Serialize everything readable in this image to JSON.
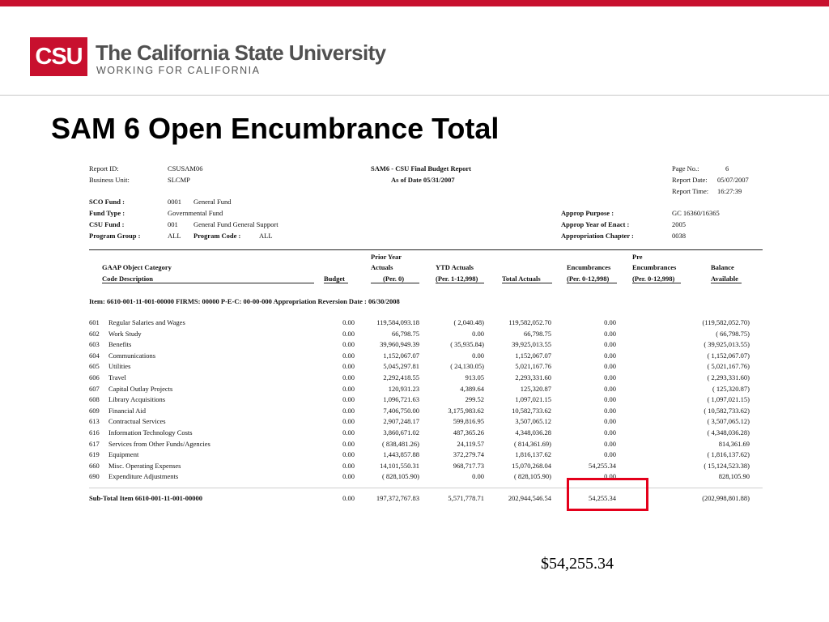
{
  "branding": {
    "logo_mark": "CSU",
    "name": "The California State University",
    "tagline": "WORKING FOR CALIFORNIA",
    "brand_color": "#c8102e"
  },
  "slide": {
    "title": "SAM 6 Open Encumbrance Total",
    "callout": "$54,255.34",
    "highlight_color": "#e4001b"
  },
  "report": {
    "id_label": "Report ID:",
    "id_value": "CSUSAM06",
    "bu_label": "Business Unit:",
    "bu_value": "SLCMP",
    "title": "SAM6 - CSU Final Budget Report",
    "as_of": "As of Date 05/31/2007",
    "page_label": "Page No.:",
    "page_value": "6",
    "date_label": "Report Date:",
    "date_value": "05/07/2007",
    "time_label": "Report Time:",
    "time_value": "16:27:39",
    "sco_label": "SCO Fund :",
    "sco_code": "0001",
    "sco_desc": "General Fund",
    "ftype_label": "Fund Type :",
    "ftype_value": "Governmental Fund",
    "csu_label": "CSU Fund :",
    "csu_code": "001",
    "csu_desc": "General Fund General Support",
    "pg_label": "Program Group :",
    "pg_value": "ALL",
    "pc_label": "Program Code :",
    "pc_value": "ALL",
    "purpose_label": "Approp Purpose :",
    "purpose_value": "GC 16360/16365",
    "year_label": "Approp Year of Enact :",
    "year_value": "2005",
    "chapter_label": "Appropriation Chapter :",
    "chapter_value": "0038",
    "headers": {
      "gaap": "GAAP Object Category",
      "code_desc": "Code Description",
      "budget": "Budget",
      "prior_year": "Prior Year",
      "actuals": "Actuals",
      "per0": "(Per. 0)",
      "ytd": "YTD Actuals",
      "per1_12": "(Per. 1-12,998)",
      "total": "Total Actuals",
      "enc": "Encumbrances",
      "per0_12": "(Per. 0-12,998)",
      "pre": "Pre",
      "pre_enc": "Encumbrances",
      "pre_per": "(Per. 0-12,998)",
      "balance": "Balance",
      "available": "Available"
    },
    "item_line": "Item: 6610-001-11-001-00000      FIRMS:  00000      P-E-C: 00-00-000   Appropriation Reversion Date : 06/30/2008",
    "rows": [
      {
        "code": "601",
        "desc": "Regular Salaries and Wages",
        "budget": "0.00",
        "prior": "119,584,093.18",
        "ytd": "(        2,040.48)",
        "total": "119,582,052.70",
        "enc": "0.00",
        "pre": "",
        "balance": "(119,582,052.70)"
      },
      {
        "code": "602",
        "desc": "Work Study",
        "budget": "0.00",
        "prior": "66,798.75",
        "ytd": "0.00",
        "total": "66,798.75",
        "enc": "0.00",
        "pre": "",
        "balance": "(        66,798.75)"
      },
      {
        "code": "603",
        "desc": "Benefits",
        "budget": "0.00",
        "prior": "39,960,949.39",
        "ytd": "(      35,935.84)",
        "total": "39,925,013.55",
        "enc": "0.00",
        "pre": "",
        "balance": "(  39,925,013.55)"
      },
      {
        "code": "604",
        "desc": "Communications",
        "budget": "0.00",
        "prior": "1,152,067.07",
        "ytd": "0.00",
        "total": "1,152,067.07",
        "enc": "0.00",
        "pre": "",
        "balance": "(    1,152,067.07)"
      },
      {
        "code": "605",
        "desc": "Utilities",
        "budget": "0.00",
        "prior": "5,045,297.81",
        "ytd": "(      24,130.05)",
        "total": "5,021,167.76",
        "enc": "0.00",
        "pre": "",
        "balance": "(    5,021,167.76)"
      },
      {
        "code": "606",
        "desc": "Travel",
        "budget": "0.00",
        "prior": "2,292,418.55",
        "ytd": "913.05",
        "total": "2,293,331.60",
        "enc": "0.00",
        "pre": "",
        "balance": "(    2,293,331.60)"
      },
      {
        "code": "607",
        "desc": "Capital Outlay Projects",
        "budget": "0.00",
        "prior": "120,931.23",
        "ytd": "4,389.64",
        "total": "125,320.87",
        "enc": "0.00",
        "pre": "",
        "balance": "(       125,320.87)"
      },
      {
        "code": "608",
        "desc": "Library Acquisitions",
        "budget": "0.00",
        "prior": "1,096,721.63",
        "ytd": "299.52",
        "total": "1,097,021.15",
        "enc": "0.00",
        "pre": "",
        "balance": "(    1,097,021.15)"
      },
      {
        "code": "609",
        "desc": "Financial Aid",
        "budget": "0.00",
        "prior": "7,406,750.00",
        "ytd": "3,175,983.62",
        "total": "10,582,733.62",
        "enc": "0.00",
        "pre": "",
        "balance": "(  10,582,733.62)"
      },
      {
        "code": "613",
        "desc": "Contractual Services",
        "budget": "0.00",
        "prior": "2,907,248.17",
        "ytd": "599,816.95",
        "total": "3,507,065.12",
        "enc": "0.00",
        "pre": "",
        "balance": "(    3,507,065.12)"
      },
      {
        "code": "616",
        "desc": "Information Technology Costs",
        "budget": "0.00",
        "prior": "3,860,671.02",
        "ytd": "487,365.26",
        "total": "4,348,036.28",
        "enc": "0.00",
        "pre": "",
        "balance": "(    4,348,036.28)"
      },
      {
        "code": "617",
        "desc": "Services from Other Funds/Agencies",
        "budget": "0.00",
        "prior": "(      838,481.26)",
        "ytd": "24,119.57",
        "total": "(      814,361.69)",
        "enc": "0.00",
        "pre": "",
        "balance": "814,361.69"
      },
      {
        "code": "619",
        "desc": "Equipment",
        "budget": "0.00",
        "prior": "1,443,857.88",
        "ytd": "372,279.74",
        "total": "1,816,137.62",
        "enc": "0.00",
        "pre": "",
        "balance": "(    1,816,137.62)"
      },
      {
        "code": "660",
        "desc": "Misc. Operating Expenses",
        "budget": "0.00",
        "prior": "14,101,550.31",
        "ytd": "968,717.73",
        "total": "15,070,268.04",
        "enc": "54,255.34",
        "pre": "",
        "balance": "(  15,124,523.38)"
      },
      {
        "code": "690",
        "desc": "Expenditure Adjustments",
        "budget": "0.00",
        "prior": "(      828,105.90)",
        "ytd": "0.00",
        "total": "(      828,105.90)",
        "enc": "0.00",
        "pre": "",
        "balance": "828,105.90"
      }
    ],
    "subtotal": {
      "label": "Sub-Total Item  6610-001-11-001-00000",
      "budget": "0.00",
      "prior": "197,372,767.83",
      "ytd": "5,571,778.71",
      "total": "202,944,546.54",
      "enc": "54,255.34",
      "pre": "",
      "balance": "(202,998,801.88)"
    }
  }
}
